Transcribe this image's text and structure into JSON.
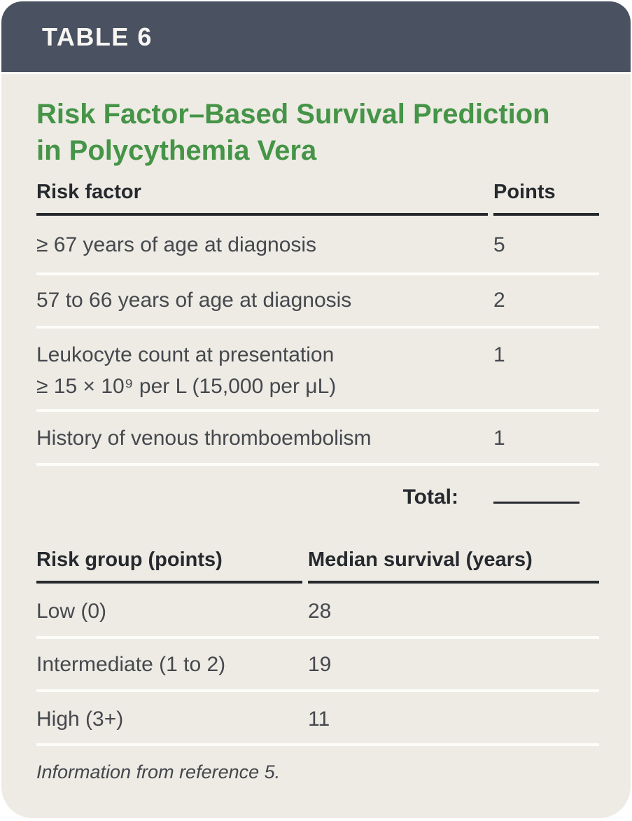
{
  "header": {
    "tag": "TABLE 6",
    "title_line1": "Risk Factor–Based Survival Prediction",
    "title_line2": "in Polycythemia Vera"
  },
  "risk_table": {
    "col1_header": "Risk factor",
    "col2_header": "Points",
    "rows": [
      {
        "factor": "≥ 67 years of age at diagnosis",
        "points": "5"
      },
      {
        "factor": "57 to 66 years of age at diagnosis",
        "points": "2"
      },
      {
        "factor": "Leukocyte count at presentation\n≥ 15 × 10⁹ per L (15,000 per μL)",
        "points": "1"
      },
      {
        "factor": "History of venous thromboembolism",
        "points": "1"
      }
    ],
    "total_label": "Total:",
    "total_value": ""
  },
  "survival_table": {
    "col1_header": "Risk group (points)",
    "col2_header": "Median survival (years)",
    "rows": [
      {
        "group": "Low (0)",
        "survival": "28"
      },
      {
        "group": "Intermediate (1 to 2)",
        "survival": "19"
      },
      {
        "group": "High (3+)",
        "survival": "11"
      }
    ]
  },
  "footnote": "Information from reference 5.",
  "colors": {
    "header_bar": "#4a5160",
    "body_background": "#edebe4",
    "title_green": "#459447",
    "text_dark": "#26292e",
    "text_row": "#45484d",
    "separator_white": "#fcfcf8"
  }
}
